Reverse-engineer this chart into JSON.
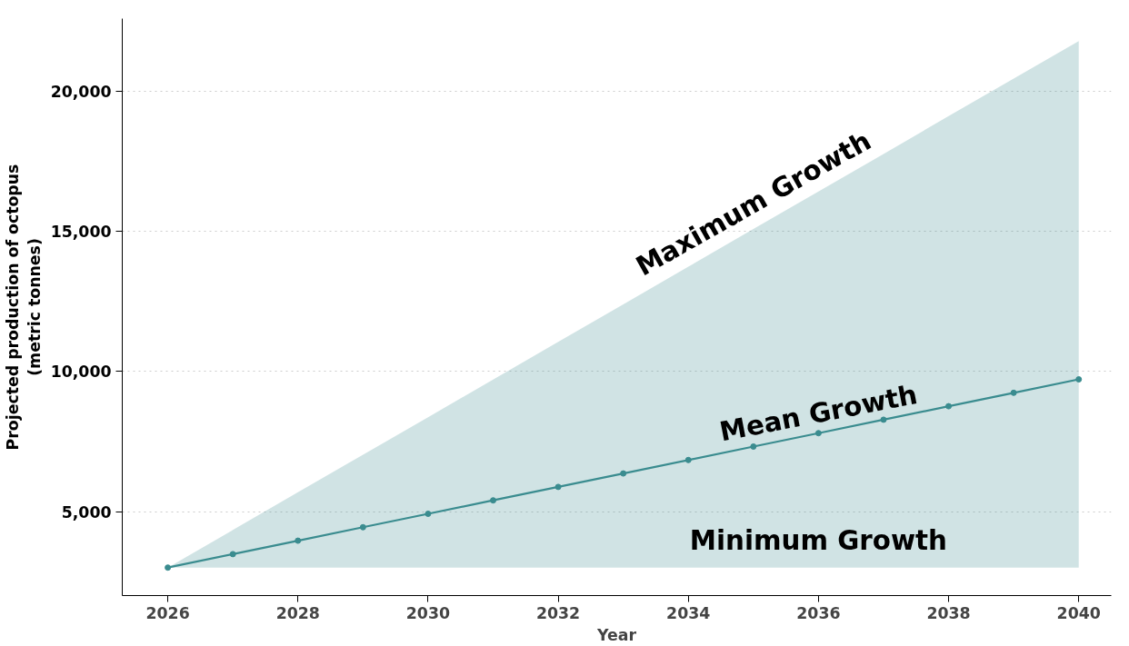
{
  "chart_data": {
    "type": "line",
    "xlabel": "Year",
    "ylabel": "Projected production of octopus\n(metric tonnes)",
    "x": [
      2026,
      2027,
      2028,
      2029,
      2030,
      2031,
      2032,
      2033,
      2034,
      2035,
      2036,
      2037,
      2038,
      2039,
      2040
    ],
    "series": [
      {
        "color": "#3a8c8f",
        "values": [
          3000,
          3480,
          3960,
          4440,
          4920,
          5400,
          5880,
          6360,
          6840,
          7320,
          7800,
          8280,
          8760,
          9240,
          9720
        ],
        "lower": [
          3000,
          3000,
          3000,
          3000,
          3000,
          3000,
          3000,
          3000,
          3000,
          3000,
          3000,
          3000,
          3000,
          3000,
          3000
        ],
        "upper": [
          3000,
          4340,
          5690,
          7030,
          8370,
          9710,
          11060,
          12400,
          13740,
          15090,
          16430,
          17770,
          19120,
          20460,
          21800
        ]
      }
    ],
    "xlim": [
      2025.3,
      2040.5
    ],
    "ylim": [
      2000,
      22600
    ],
    "xticks": [
      2026,
      2028,
      2030,
      2032,
      2034,
      2036,
      2038,
      2040
    ],
    "yticks": [
      {
        "value": 5000,
        "label": "5,000"
      },
      {
        "value": 10000,
        "label": "10,000"
      },
      {
        "value": 15000,
        "label": "15,000"
      },
      {
        "value": 20000,
        "label": "20,000"
      }
    ],
    "grid": "y",
    "marker": "circle",
    "line_style": "solid",
    "annotations": [
      "Maximum Growth",
      "Mean Growth",
      "Minimum Growth"
    ]
  }
}
